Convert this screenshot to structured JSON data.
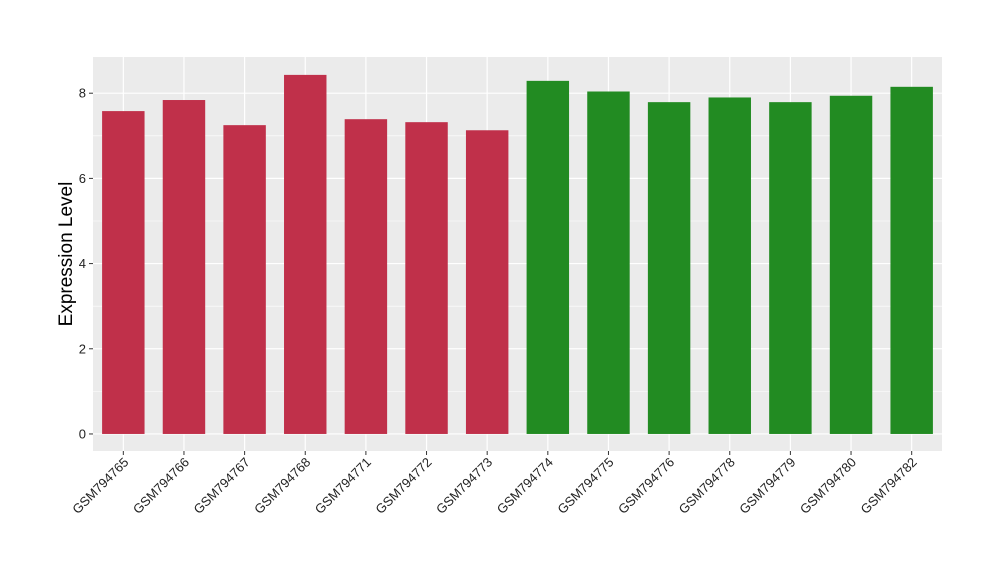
{
  "chart_data": {
    "type": "bar",
    "ylabel": "Expression Level",
    "xlabel": "",
    "ylim": [
      -0.4,
      8.85
    ],
    "yticks": [
      0,
      2,
      4,
      6,
      8
    ],
    "grid": true,
    "legend": "none",
    "categories": [
      "GSM794765",
      "GSM794766",
      "GSM794767",
      "GSM794768",
      "GSM794771",
      "GSM794772",
      "GSM794773",
      "GSM794774",
      "GSM794775",
      "GSM794776",
      "GSM794778",
      "GSM794779",
      "GSM794780",
      "GSM794782"
    ],
    "values": [
      7.58,
      7.84,
      7.25,
      8.43,
      7.39,
      7.32,
      7.13,
      8.29,
      8.04,
      7.79,
      7.9,
      7.79,
      7.94,
      8.15
    ],
    "bar_colors": [
      "#c0304a",
      "#c0304a",
      "#c0304a",
      "#c0304a",
      "#c0304a",
      "#c0304a",
      "#c0304a",
      "#228b22",
      "#228b22",
      "#228b22",
      "#228b22",
      "#228b22",
      "#228b22",
      "#228b22"
    ],
    "panel_background": "#ebebeb",
    "grid_color": "#ffffff"
  }
}
